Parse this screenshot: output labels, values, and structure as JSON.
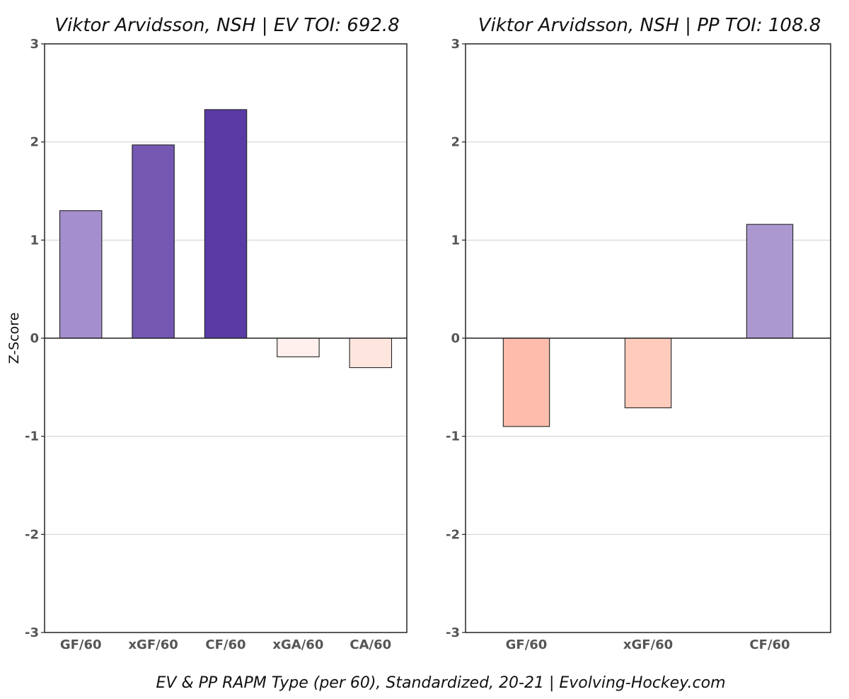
{
  "caption": "EV & PP RAPM Type (per 60), Standardized, 20-21    |    Evolving-Hockey.com",
  "chart_data": [
    {
      "type": "bar",
      "title": "Viktor Arvidsson, NSH  |  EV TOI: 692.8",
      "ylabel": "Z-Score",
      "xlabel": "",
      "ylim": [
        -3,
        3
      ],
      "yticks": [
        -3,
        -2,
        -1,
        0,
        1,
        2,
        3
      ],
      "grid": "horizontal",
      "categories": [
        "GF/60",
        "xGF/60",
        "CF/60",
        "xGA/60",
        "CA/60"
      ],
      "values": [
        1.3,
        1.97,
        2.33,
        -0.19,
        -0.3
      ],
      "colors": [
        "#a58ecd",
        "#7458b2",
        "#5a3ba6",
        "#fff0ee",
        "#fee6df"
      ]
    },
    {
      "type": "bar",
      "title": "Viktor Arvidsson, NSH  |  PP TOI: 108.8",
      "ylabel": "",
      "xlabel": "",
      "ylim": [
        -3,
        3
      ],
      "yticks": [
        -3,
        -2,
        -1,
        0,
        1,
        2,
        3
      ],
      "grid": "horizontal",
      "categories": [
        "GF/60",
        "xGF/60",
        "CF/60"
      ],
      "values": [
        -0.9,
        -0.71,
        1.16
      ],
      "colors": [
        "#fdbcac",
        "#fecbbd",
        "#ac98d1"
      ]
    }
  ]
}
